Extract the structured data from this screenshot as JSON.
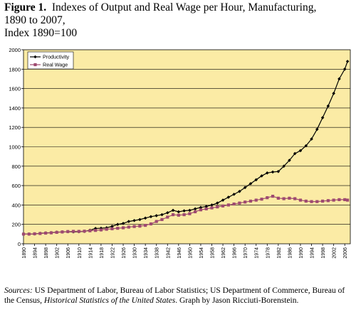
{
  "title": {
    "lead": "Figure 1.",
    "line1": "Indexes of Output and Real Wage per Hour, Manufacturing,",
    "line2": "1890 to 2007,",
    "line3": "Index 1890=100"
  },
  "source": {
    "label": "Sources:",
    "text1": "US Department of Labor, Bureau of Labor Statistics; US Department of Commerce, Bureau of the Census,",
    "italic": "Historical Statistics of the United States",
    "text2": ". Graph by Jason Ricciuti-Borenstein."
  },
  "chart_data": {
    "type": "line",
    "ylim": [
      0,
      2000
    ],
    "yticks": [
      0,
      200,
      400,
      600,
      800,
      1000,
      1200,
      1400,
      1600,
      1800,
      2000
    ],
    "xlim": [
      1890,
      2008
    ],
    "xticks": [
      1890,
      1894,
      1898,
      1902,
      1906,
      1910,
      1914,
      1918,
      1922,
      1926,
      1930,
      1934,
      1938,
      1942,
      1946,
      1950,
      1954,
      1958,
      1962,
      1966,
      1970,
      1974,
      1978,
      1982,
      1986,
      1990,
      1994,
      1998,
      2002,
      2006
    ],
    "plot_background": "#fbeba5",
    "legend_position": "top-left",
    "series": [
      {
        "name": "Productivity",
        "color": "#000000",
        "marker": "diamond",
        "x": [
          1890,
          1892,
          1894,
          1896,
          1898,
          1900,
          1902,
          1904,
          1906,
          1908,
          1910,
          1912,
          1914,
          1916,
          1918,
          1920,
          1922,
          1924,
          1926,
          1928,
          1930,
          1932,
          1934,
          1936,
          1938,
          1940,
          1942,
          1944,
          1946,
          1948,
          1950,
          1952,
          1954,
          1956,
          1958,
          1960,
          1962,
          1964,
          1966,
          1968,
          1970,
          1972,
          1974,
          1976,
          1978,
          1980,
          1982,
          1984,
          1986,
          1988,
          1990,
          1992,
          1994,
          1996,
          1998,
          2000,
          2002,
          2004,
          2006,
          2007
        ],
        "values": [
          100,
          100,
          102,
          108,
          112,
          115,
          120,
          122,
          125,
          123,
          125,
          128,
          140,
          158,
          160,
          165,
          180,
          200,
          210,
          230,
          240,
          250,
          265,
          280,
          290,
          300,
          320,
          345,
          330,
          340,
          345,
          360,
          375,
          385,
          400,
          420,
          450,
          480,
          510,
          540,
          580,
          620,
          660,
          700,
          730,
          740,
          745,
          800,
          860,
          930,
          960,
          1010,
          1080,
          1180,
          1300,
          1420,
          1550,
          1700,
          1800,
          1880
        ]
      },
      {
        "name": "Real Wage",
        "color": "#9e4a70",
        "marker": "square",
        "x": [
          1890,
          1892,
          1894,
          1896,
          1898,
          1900,
          1902,
          1904,
          1906,
          1908,
          1910,
          1912,
          1914,
          1916,
          1918,
          1920,
          1922,
          1924,
          1926,
          1928,
          1930,
          1932,
          1934,
          1936,
          1938,
          1940,
          1942,
          1944,
          1946,
          1948,
          1950,
          1952,
          1954,
          1956,
          1958,
          1960,
          1962,
          1964,
          1966,
          1968,
          1970,
          1972,
          1974,
          1976,
          1978,
          1980,
          1982,
          1984,
          1986,
          1988,
          1990,
          1992,
          1994,
          1996,
          1998,
          2000,
          2002,
          2004,
          2006,
          2007
        ],
        "values": [
          100,
          100,
          103,
          106,
          110,
          113,
          118,
          122,
          126,
          128,
          128,
          130,
          134,
          138,
          143,
          150,
          155,
          160,
          165,
          172,
          178,
          182,
          190,
          205,
          230,
          250,
          275,
          300,
          295,
          300,
          310,
          330,
          350,
          360,
          370,
          380,
          390,
          400,
          410,
          420,
          430,
          440,
          450,
          460,
          475,
          490,
          470,
          465,
          470,
          465,
          450,
          440,
          435,
          435,
          440,
          445,
          450,
          455,
          455,
          450
        ]
      }
    ]
  }
}
